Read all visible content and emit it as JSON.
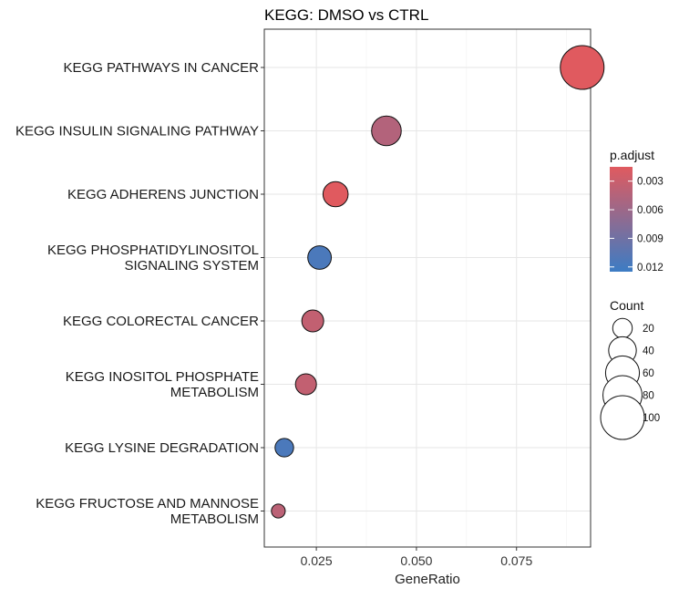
{
  "chart_data": {
    "type": "scatter",
    "title": "KEGG: DMSO vs CTRL",
    "xlabel": "GeneRatio",
    "ylabel": "",
    "xlim": [
      0.012,
      0.0935
    ],
    "x_ticks": [
      0.025,
      0.05,
      0.075
    ],
    "x_tick_labels": [
      "0.025",
      "0.050",
      "0.075"
    ],
    "grid": true,
    "categories": [
      "KEGG PATHWAYS IN CANCER",
      "KEGG INSULIN SIGNALING PATHWAY",
      "KEGG ADHERENS JUNCTION",
      "KEGG PHOSPHATIDYLINOSITOL\nSIGNALING SYSTEM",
      "KEGG COLORECTAL CANCER",
      "KEGG INOSITOL PHOSPHATE\nMETABOLISM",
      "KEGG LYSINE DEGRADATION",
      "KEGG FRUCTOSE AND MANNOSE\nMETABOLISM"
    ],
    "points": [
      {
        "category": "KEGG PATHWAYS IN CANCER",
        "x": 0.0914,
        "count": 100,
        "p_adjust": 0.0005
      },
      {
        "category": "KEGG INSULIN SIGNALING PATHWAY",
        "x": 0.0425,
        "count": 46,
        "p_adjust": 0.0045
      },
      {
        "category": "KEGG ADHERENS JUNCTION",
        "x": 0.0298,
        "count": 33,
        "p_adjust": 0.0015
      },
      {
        "category": "KEGG PHOSPHATIDYLINOSITOL\nSIGNALING SYSTEM",
        "x": 0.0258,
        "count": 29,
        "p_adjust": 0.0115
      },
      {
        "category": "KEGG COLORECTAL CANCER",
        "x": 0.0241,
        "count": 25,
        "p_adjust": 0.0035
      },
      {
        "category": "KEGG INOSITOL PHOSPHATE\nMETABOLISM",
        "x": 0.0224,
        "count": 23,
        "p_adjust": 0.0035
      },
      {
        "category": "KEGG LYSINE DEGRADATION",
        "x": 0.017,
        "count": 18,
        "p_adjust": 0.0115
      },
      {
        "category": "KEGG FRUCTOSE AND MANNOSE\nMETABOLISM",
        "x": 0.0155,
        "count": 10,
        "p_adjust": 0.004
      }
    ],
    "color_legend": {
      "title": "p.adjust",
      "range": [
        0.0015,
        0.0125
      ],
      "ticks": [
        0.003,
        0.006,
        0.009,
        0.012
      ],
      "tick_labels": [
        "0.003",
        "0.006",
        "0.009",
        "0.012"
      ],
      "low_color": "#E05A5F",
      "high_color": "#3C7CC4"
    },
    "size_legend": {
      "title": "Count",
      "values": [
        20,
        40,
        60,
        80,
        100
      ],
      "labels": [
        "20",
        "40",
        "60",
        "80",
        "100"
      ]
    },
    "legend_position": "right"
  }
}
